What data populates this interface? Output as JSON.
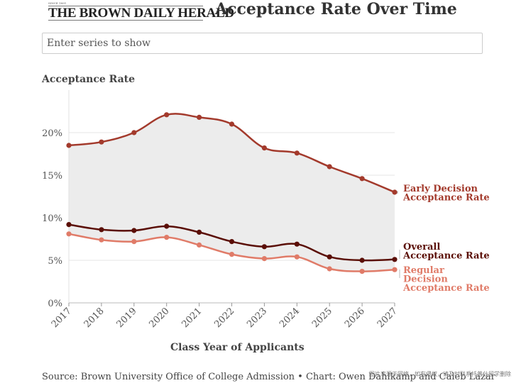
{
  "masthead": {
    "name": "THE BROWN DAILY HERALD",
    "tagline": "SINCE 1891"
  },
  "title": "Acceptance Rate Over Time",
  "search": {
    "placeholder": "Enter series to show"
  },
  "source": "Source: Brown University Office of College Admission • Chart: Owen Dahlkamp and Caleb Lazar",
  "watermark": "图片来源于网络，如有侵权，请及时联系托普仕留学删除",
  "colors": {
    "early": "#a33a2c",
    "overall": "#5a0e06",
    "regular": "#e07b68",
    "band": "#ececec",
    "grid": "#e4e4e4"
  },
  "chart_data": {
    "type": "line",
    "title": "Acceptance Rate Over Time",
    "ylabel": "Acceptance Rate",
    "xlabel": "Class Year of Applicants",
    "ylim": [
      0,
      25
    ],
    "yticks": [
      "0%",
      "5%",
      "10%",
      "15%",
      "20%"
    ],
    "ytick_values": [
      0,
      5,
      10,
      15,
      20
    ],
    "categories": [
      "2017",
      "2018",
      "2019",
      "2020",
      "2021",
      "2022",
      "2023",
      "2024",
      "2025",
      "2026",
      "2027"
    ],
    "grid": true,
    "shaded_between": [
      "Early Decision Acceptance Rate",
      "Regular Decision Acceptance Rate"
    ],
    "series": [
      {
        "name": "Early Decision Acceptance Rate",
        "label_lines": [
          "Early Decision",
          "Acceptance Rate"
        ],
        "color": "#a33a2c",
        "values": [
          18.5,
          18.9,
          20.0,
          22.1,
          21.8,
          21.0,
          18.2,
          17.6,
          16.0,
          14.6,
          13.0
        ]
      },
      {
        "name": "Overall Acceptance Rate",
        "label_lines": [
          "Overall",
          "Acceptance Rate"
        ],
        "color": "#5a0e06",
        "values": [
          9.2,
          8.6,
          8.5,
          9.0,
          8.3,
          7.2,
          6.6,
          6.9,
          5.4,
          5.0,
          5.1
        ]
      },
      {
        "name": "Regular Decision Acceptance Rate",
        "label_lines": [
          "Regular",
          "Decision",
          "Acceptance Rate"
        ],
        "color": "#e07b68",
        "values": [
          8.1,
          7.4,
          7.2,
          7.7,
          6.8,
          5.7,
          5.2,
          5.4,
          4.0,
          3.7,
          3.9
        ]
      }
    ]
  }
}
